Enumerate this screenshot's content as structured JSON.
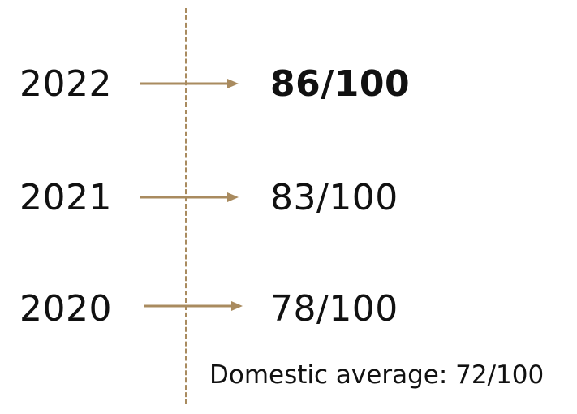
{
  "accent_color": "#A98B5F",
  "timeline": {
    "rows": [
      {
        "year": "2022",
        "score": "86/100",
        "highlight": true
      },
      {
        "year": "2021",
        "score": "83/100",
        "highlight": false
      },
      {
        "year": "2020",
        "score": "78/100",
        "highlight": false
      }
    ]
  },
  "note": "Domestic average: 72/100"
}
